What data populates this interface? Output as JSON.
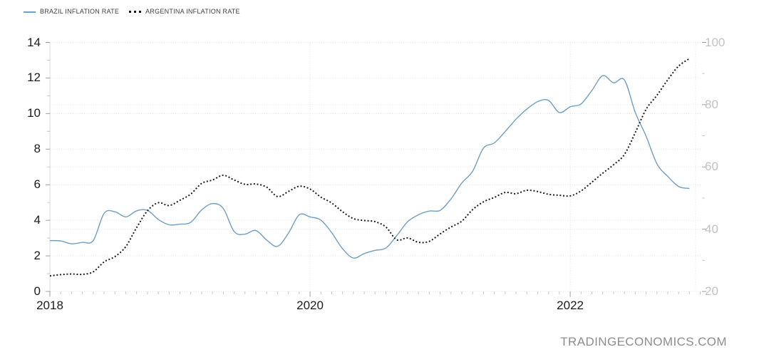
{
  "legend": [
    {
      "label": "BRAZIL INFLATION RATE",
      "color": "#6f9fc4",
      "marker": "solid-line"
    },
    {
      "label": "ARGENTINA INFLATION RATE",
      "color": "#1c1c1c",
      "marker": "dotted-line"
    }
  ],
  "watermark": "TRADINGECONOMICS.COM",
  "colors": {
    "brazil_line": "#6f9fc4",
    "argentina_line": "#1c1c1c",
    "gridline": "#e3e3e3",
    "left_axis_text": "#1b1b1b",
    "right_axis_text": "#c2c2c2",
    "watermark_text": "#8d8d8d"
  },
  "chart_data": {
    "type": "line",
    "title": "",
    "xlabel": "",
    "ylabel_left": "",
    "ylabel_right": "",
    "grid": true,
    "legend_position": "top-left",
    "x_start": "2018-01",
    "x_end": "2022-12",
    "x_interval": "monthly",
    "x_tick_labels": [
      {
        "label": "2018",
        "month_index": 0
      },
      {
        "label": "2020",
        "month_index": 24
      },
      {
        "label": "2022",
        "month_index": 48
      }
    ],
    "left_axis": {
      "min": 0,
      "max": 14,
      "ticks": [
        0,
        2,
        4,
        6,
        8,
        10,
        12,
        14
      ]
    },
    "right_axis": {
      "min": 20,
      "max": 100,
      "ticks": [
        20,
        40,
        60,
        80,
        100
      ]
    },
    "series": [
      {
        "name": "BRAZIL INFLATION RATE",
        "axis": "left",
        "color": "#6f9fc4",
        "line_style": "solid",
        "values": [
          2.86,
          2.84,
          2.68,
          2.76,
          2.86,
          4.39,
          4.48,
          4.19,
          4.53,
          4.56,
          4.05,
          3.75,
          3.78,
          3.89,
          4.58,
          4.94,
          4.66,
          3.37,
          3.22,
          3.43,
          2.89,
          2.54,
          3.27,
          4.31,
          4.19,
          4.01,
          3.3,
          2.4,
          1.88,
          2.13,
          2.31,
          2.44,
          3.14,
          3.92,
          4.31,
          4.52,
          4.56,
          5.2,
          6.1,
          6.76,
          8.06,
          8.35,
          8.99,
          9.68,
          10.25,
          10.67,
          10.74,
          10.06,
          10.38,
          10.54,
          11.3,
          12.13,
          11.73,
          11.89,
          10.07,
          8.73,
          7.17,
          6.47,
          5.9,
          5.79
        ]
      },
      {
        "name": "ARGENTINA INFLATION RATE",
        "axis": "right",
        "color": "#1c1c1c",
        "line_style": "dotted",
        "values": [
          25.0,
          25.4,
          25.6,
          25.5,
          26.3,
          29.5,
          31.2,
          34.4,
          40.5,
          45.9,
          48.5,
          47.6,
          49.3,
          51.3,
          54.7,
          55.8,
          57.3,
          55.8,
          54.4,
          54.5,
          53.5,
          50.5,
          52.1,
          53.8,
          52.9,
          50.3,
          48.4,
          45.6,
          43.4,
          42.8,
          42.4,
          40.7,
          36.6,
          37.2,
          35.8,
          36.1,
          38.5,
          40.7,
          42.6,
          46.3,
          48.8,
          50.2,
          51.8,
          51.4,
          52.5,
          52.1,
          51.2,
          50.9,
          50.7,
          52.3,
          55.1,
          58.0,
          60.7,
          64.0,
          71.0,
          78.5,
          83.0,
          88.0,
          92.4,
          94.8
        ]
      }
    ]
  }
}
